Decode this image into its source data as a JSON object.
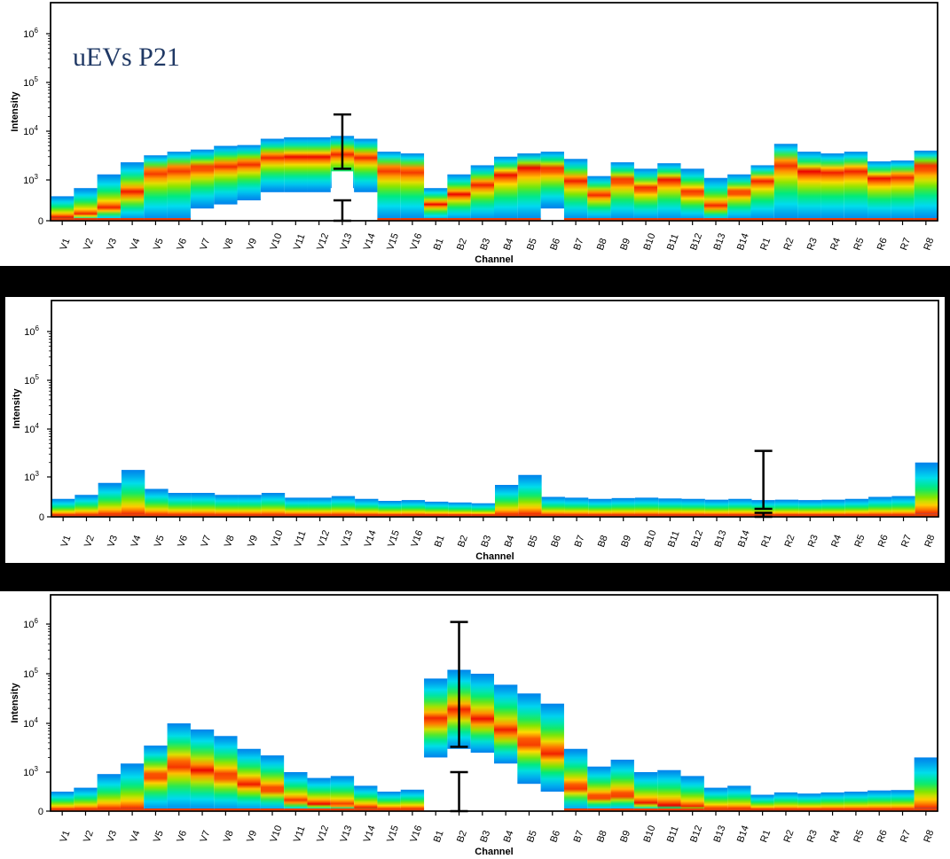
{
  "chart_data": [
    {
      "type": "heatmap",
      "title": "uEVs P21",
      "xlabel": "Channel",
      "ylabel": "Intensity",
      "yscale": "symlog",
      "y_ticks": [
        "0",
        "10^3",
        "10^4",
        "10^5",
        "10^6"
      ],
      "categories": [
        "V1",
        "V2",
        "V3",
        "V4",
        "V5",
        "V6",
        "V7",
        "V8",
        "V9",
        "V10",
        "V11",
        "V12",
        "V13",
        "V14",
        "V15",
        "V16",
        "B1",
        "B2",
        "B3",
        "B4",
        "B5",
        "B6",
        "B7",
        "B8",
        "B9",
        "B10",
        "B11",
        "B12",
        "B13",
        "B14",
        "R1",
        "R2",
        "R3",
        "R4",
        "R5",
        "R6",
        "R7",
        "R8"
      ],
      "series": [
        {
          "upper": [
            600,
            800,
            1300,
            2300,
            3200,
            3800,
            4200,
            5000,
            5200,
            7000,
            7500,
            7500,
            8000,
            7000,
            3800,
            3500,
            800,
            1300,
            2000,
            3000,
            3500,
            3800,
            2700,
            1200,
            2300,
            1700,
            2200,
            1700,
            1100,
            1300,
            2000,
            5500,
            3800,
            3500,
            3800,
            2400,
            2500,
            4000
          ],
          "peak": [
            80,
            150,
            300,
            700,
            1500,
            1700,
            1800,
            2000,
            2200,
            3000,
            3000,
            3000,
            3500,
            3000,
            1700,
            1600,
            400,
            650,
            900,
            1300,
            1800,
            1700,
            1000,
            650,
            1000,
            800,
            1000,
            700,
            350,
            700,
            1000,
            2200,
            1500,
            1500,
            1600,
            1100,
            1200,
            1900
          ],
          "lower": [
            0,
            0,
            0,
            0,
            0,
            0,
            300,
            400,
            500,
            700,
            700,
            700,
            800,
            700,
            0,
            0,
            0,
            0,
            0,
            0,
            0,
            300,
            0,
            0,
            0,
            0,
            0,
            0,
            0,
            0,
            0,
            0,
            0,
            0,
            0,
            0,
            0,
            0
          ]
        }
      ],
      "error_bars": [
        {
          "category": "V13",
          "upper": 22000,
          "upper_lower": 1700,
          "lower_upper": 500,
          "lower": 0
        }
      ]
    },
    {
      "type": "heatmap",
      "title": "",
      "xlabel": "Channel",
      "ylabel": "Intensity",
      "yscale": "symlog",
      "y_ticks": [
        "0",
        "10^3",
        "10^4",
        "10^5",
        "10^6"
      ],
      "categories": [
        "V1",
        "V2",
        "V3",
        "V4",
        "V5",
        "V6",
        "V7",
        "V8",
        "V9",
        "V10",
        "V11",
        "V12",
        "V13",
        "V14",
        "V15",
        "V16",
        "B1",
        "B2",
        "B3",
        "B4",
        "B5",
        "B6",
        "B7",
        "B8",
        "B9",
        "B10",
        "B11",
        "B12",
        "B13",
        "B14",
        "R1",
        "R2",
        "R3",
        "R4",
        "R5",
        "R6",
        "R7",
        "R8"
      ],
      "series": [
        {
          "upper": [
            450,
            550,
            850,
            1400,
            700,
            600,
            600,
            550,
            550,
            600,
            480,
            480,
            520,
            450,
            400,
            420,
            380,
            360,
            340,
            800,
            1100,
            500,
            480,
            450,
            470,
            480,
            460,
            450,
            430,
            450,
            420,
            430,
            420,
            430,
            450,
            500,
            520,
            2000
          ],
          "peak": [
            30,
            30,
            30,
            30,
            30,
            30,
            30,
            30,
            30,
            30,
            30,
            30,
            30,
            30,
            30,
            30,
            30,
            30,
            30,
            30,
            30,
            30,
            30,
            30,
            30,
            30,
            30,
            30,
            30,
            30,
            30,
            30,
            30,
            30,
            30,
            30,
            30,
            30
          ],
          "lower": [
            0,
            0,
            0,
            0,
            0,
            0,
            0,
            0,
            0,
            0,
            0,
            0,
            0,
            0,
            0,
            0,
            0,
            0,
            0,
            0,
            0,
            0,
            0,
            0,
            0,
            0,
            0,
            0,
            0,
            0,
            0,
            0,
            0,
            0,
            0,
            0,
            0,
            0
          ]
        }
      ],
      "error_bars": [
        {
          "category": "R1",
          "upper": 3500,
          "upper_lower": 200,
          "lower_upper": 100,
          "lower": 0
        }
      ]
    },
    {
      "type": "heatmap",
      "title": "",
      "xlabel": "Channel",
      "ylabel": "Intensity",
      "yscale": "symlog",
      "y_ticks": [
        "0",
        "10^3",
        "10^4",
        "10^5",
        "10^6"
      ],
      "categories": [
        "V1",
        "V2",
        "V3",
        "V4",
        "V5",
        "V6",
        "V7",
        "V8",
        "V9",
        "V10",
        "V11",
        "V12",
        "V13",
        "V14",
        "V15",
        "V16",
        "B1",
        "B2",
        "B3",
        "B4",
        "B5",
        "B6",
        "B7",
        "B8",
        "B9",
        "B10",
        "B11",
        "B12",
        "B13",
        "B14",
        "R1",
        "R2",
        "R3",
        "R4",
        "R5",
        "R6",
        "R7",
        "R8"
      ],
      "series": [
        {
          "upper": [
            500,
            600,
            950,
            1500,
            3500,
            10000,
            7500,
            5500,
            3000,
            2200,
            1000,
            850,
            900,
            650,
            500,
            550,
            80000,
            120000,
            100000,
            60000,
            40000,
            25000,
            3000,
            1300,
            1800,
            1000,
            1100,
            900,
            600,
            650,
            420,
            480,
            450,
            480,
            500,
            530,
            540,
            2000
          ],
          "peak": [
            30,
            30,
            30,
            30,
            900,
            1400,
            1100,
            900,
            700,
            550,
            250,
            180,
            150,
            80,
            40,
            40,
            12000,
            18000,
            12000,
            7000,
            4000,
            2500,
            600,
            350,
            400,
            200,
            150,
            100,
            50,
            40,
            30,
            30,
            30,
            30,
            30,
            30,
            30,
            30
          ],
          "lower": [
            0,
            0,
            0,
            0,
            0,
            0,
            0,
            0,
            0,
            0,
            0,
            0,
            0,
            0,
            0,
            0,
            2000,
            3000,
            2500,
            1500,
            700,
            500,
            0,
            0,
            0,
            0,
            0,
            0,
            0,
            0,
            0,
            0,
            0,
            0,
            0,
            0,
            0,
            0
          ]
        }
      ],
      "error_bars": [
        {
          "category": "B2",
          "upper": 1100000,
          "upper_lower": 3300,
          "lower_upper": 1000,
          "lower": 0
        }
      ]
    }
  ]
}
